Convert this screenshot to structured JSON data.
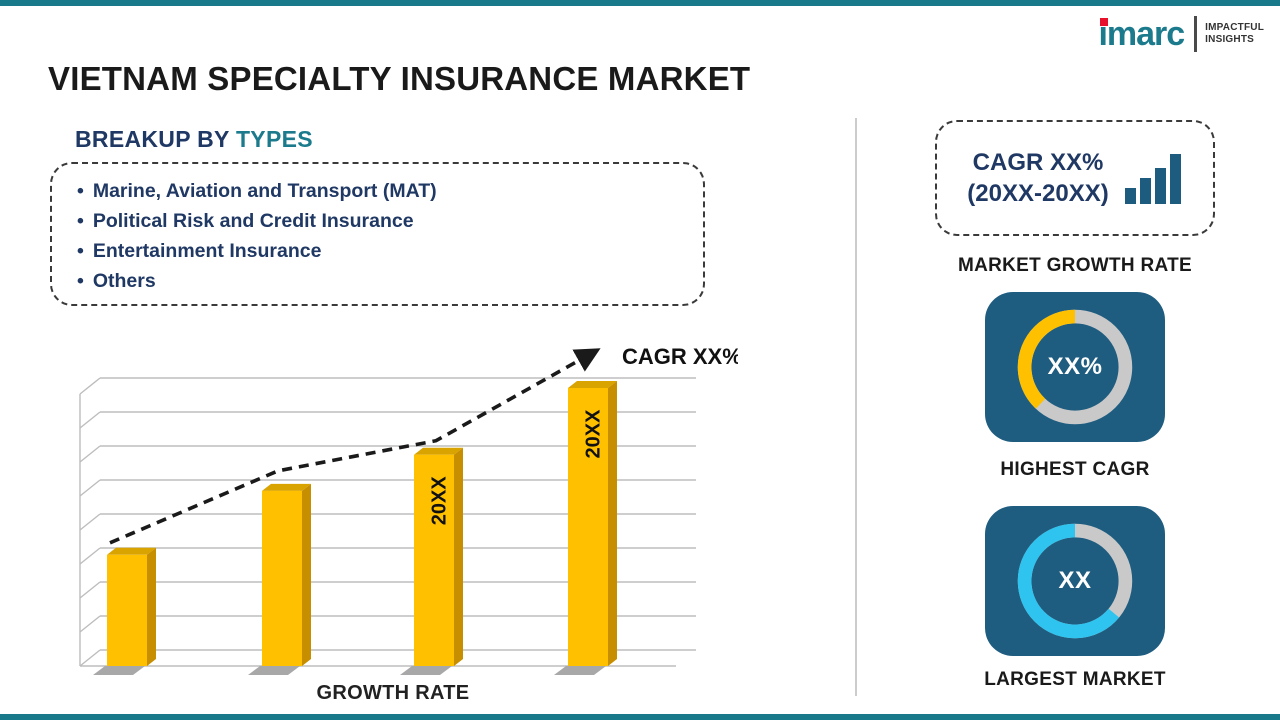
{
  "page": {
    "title": "VIETNAM SPECIALTY INSURANCE MARKET",
    "accent_color": "#17798a"
  },
  "logo": {
    "brand": "imarc",
    "tagline_line1": "IMPACTFUL",
    "tagline_line2": "INSIGHTS",
    "brand_color": "#1b7a8c",
    "dot_color": "#e8112d"
  },
  "breakup": {
    "heading_prefix": "BREAKUP BY",
    "heading_highlight": "TYPES",
    "bullet": "•",
    "items": [
      "Marine, Aviation and Transport (MAT)",
      "Political Risk and Credit Insurance",
      "Entertainment Insurance",
      "Others"
    ]
  },
  "chart_data": {
    "type": "bar",
    "title": "",
    "xlabel": "GROWTH RATE",
    "ylabel": "",
    "categories": [
      "",
      "",
      "20XX",
      "20XX"
    ],
    "values": [
      40,
      63,
      76,
      100
    ],
    "ylim": [
      0,
      100
    ],
    "grid": true,
    "gridlines": 9,
    "axis_tick_labels": false,
    "bar_color": "#ffc000",
    "bar_side_color": "#c78f00",
    "bar_top_color": "#d9a300",
    "shadow_color": "#a8a8a8",
    "trend_label": "CAGR XX%",
    "trend_style": "dashed-arrow-rising"
  },
  "stats": {
    "growth_rate_card": {
      "line1": "CAGR XX%",
      "line2": "(20XX-20XX)",
      "label": "MARKET GROWTH RATE",
      "icon_color": "#1e5c7f"
    },
    "highest_cagr_card": {
      "value": "XX%",
      "label": "HIGHEST CAGR",
      "pct": 38,
      "ring_color": "#ffc000",
      "ring_bg": "#c9c9c9",
      "card_color": "#1f5d80"
    },
    "largest_market_card": {
      "value": "XX",
      "label": "LARGEST MARKET",
      "pct": 64,
      "ring_color": "#2ec4ef",
      "ring_bg": "#c9c9c9",
      "card_color": "#1f5d80"
    }
  }
}
